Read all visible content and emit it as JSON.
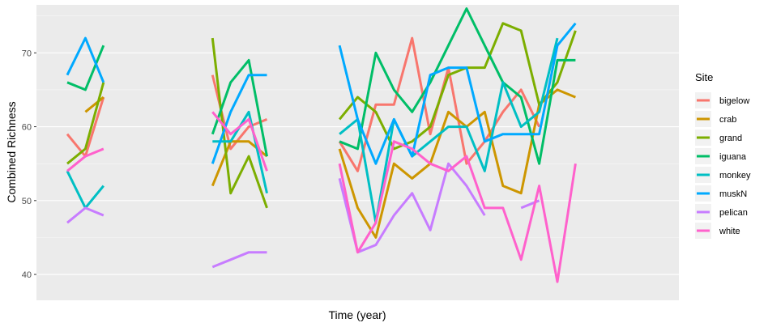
{
  "chart_data": {
    "type": "line",
    "xlabel": "Time (year)",
    "ylabel": "Combined Richness",
    "x_ticks_shown": false,
    "ylim": [
      36.5,
      76.5
    ],
    "y_ticks": [
      40,
      50,
      60,
      70
    ],
    "x": [
      0,
      1,
      2,
      3,
      4,
      5,
      6,
      7,
      8,
      9,
      10,
      11,
      12,
      13,
      14,
      15,
      16,
      17,
      18,
      19,
      20,
      21,
      22,
      23,
      24,
      25,
      26,
      27,
      28,
      29,
      30,
      31,
      32
    ],
    "legend": {
      "title": "Site",
      "position": "right"
    },
    "grid": true,
    "series": [
      {
        "name": "bigelow",
        "color": "#F8766D",
        "values": [
          59,
          56,
          64,
          null,
          null,
          null,
          null,
          null,
          67,
          57,
          60,
          61,
          null,
          null,
          null,
          58,
          54,
          63,
          63,
          72,
          59,
          68,
          55,
          58,
          62,
          65,
          60,
          null,
          null,
          null,
          null,
          null,
          null
        ]
      },
      {
        "name": "crab",
        "color": "#CD9600",
        "values": [
          null,
          62,
          64,
          null,
          null,
          null,
          null,
          null,
          52,
          58,
          58,
          56,
          null,
          null,
          null,
          57,
          49,
          45,
          55,
          53,
          55,
          62,
          60,
          62,
          52,
          51,
          63,
          65,
          64,
          null,
          null,
          null,
          null
        ]
      },
      {
        "name": "grand",
        "color": "#7CAE00",
        "values": [
          55,
          57,
          66,
          null,
          null,
          null,
          null,
          null,
          72,
          51,
          56,
          49,
          null,
          null,
          null,
          61,
          64,
          62,
          57,
          58,
          60,
          67,
          68,
          68,
          74,
          73,
          63,
          66,
          73,
          null,
          null,
          null,
          null
        ]
      },
      {
        "name": "iguana",
        "color": "#00BE67",
        "values": [
          66,
          65,
          71,
          null,
          null,
          null,
          null,
          null,
          59,
          66,
          69,
          56,
          null,
          null,
          null,
          58,
          57,
          70,
          65,
          62,
          66,
          71,
          76,
          71,
          66,
          64,
          55,
          69,
          69,
          null,
          null,
          null,
          null
        ]
      },
      {
        "name": "monkey",
        "color": "#00BFC4",
        "values": [
          54,
          49,
          52,
          null,
          null,
          null,
          null,
          null,
          58,
          58,
          62,
          51,
          null,
          null,
          null,
          59,
          61,
          47,
          61,
          56,
          58,
          60,
          60,
          54,
          66,
          60,
          62,
          72,
          null,
          null,
          null,
          null,
          null
        ]
      },
      {
        "name": "muskN",
        "color": "#00A9FF",
        "values": [
          67,
          72,
          66,
          null,
          null,
          null,
          null,
          null,
          55,
          62,
          67,
          67,
          null,
          null,
          null,
          71,
          61,
          55,
          61,
          56,
          67,
          68,
          68,
          58,
          59,
          59,
          59,
          71,
          74,
          null,
          null,
          null,
          null
        ]
      },
      {
        "name": "pelican",
        "color": "#C77CFF",
        "values": [
          47,
          49,
          48,
          null,
          null,
          null,
          null,
          null,
          41,
          42,
          43,
          43,
          null,
          null,
          null,
          53,
          43,
          44,
          48,
          51,
          46,
          55,
          52,
          48,
          null,
          49,
          50,
          null,
          null,
          null,
          null,
          null,
          null
        ]
      },
      {
        "name": "white",
        "color": "#FF61CC",
        "values": [
          54,
          56,
          57,
          null,
          null,
          null,
          null,
          null,
          62,
          59,
          61,
          54,
          null,
          null,
          null,
          55,
          43,
          47,
          58,
          57,
          55,
          54,
          56,
          49,
          49,
          42,
          52,
          39,
          55,
          null,
          null,
          null,
          null
        ]
      }
    ]
  }
}
